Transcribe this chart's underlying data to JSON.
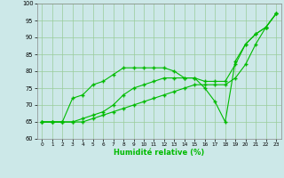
{
  "xlabel": "Humidité relative (%)",
  "xlim": [
    -0.5,
    23.5
  ],
  "ylim": [
    60,
    100
  ],
  "yticks": [
    60,
    65,
    70,
    75,
    80,
    85,
    90,
    95,
    100
  ],
  "xticks": [
    0,
    1,
    2,
    3,
    4,
    5,
    6,
    7,
    8,
    9,
    10,
    11,
    12,
    13,
    14,
    15,
    16,
    17,
    18,
    19,
    20,
    21,
    22,
    23
  ],
  "bg_color": "#cce8e8",
  "line_color": "#00bb00",
  "grid_color": "#99cc99",
  "line1_x": [
    0,
    1,
    2,
    3,
    4,
    5,
    6,
    7,
    8,
    9,
    10,
    11,
    12,
    13,
    14,
    15,
    16,
    17,
    18,
    19,
    20,
    21,
    22,
    23
  ],
  "line1_y": [
    65,
    65,
    65,
    72,
    73,
    76,
    77,
    79,
    81,
    81,
    81,
    81,
    81,
    80,
    78,
    78,
    75,
    71,
    65,
    83,
    88,
    91,
    93,
    97
  ],
  "line2_x": [
    0,
    1,
    2,
    3,
    4,
    5,
    6,
    7,
    8,
    9,
    10,
    11,
    12,
    13,
    14,
    15,
    16,
    17,
    18,
    19,
    20,
    21,
    22,
    23
  ],
  "line2_y": [
    65,
    65,
    65,
    65,
    66,
    67,
    68,
    70,
    73,
    75,
    76,
    77,
    78,
    78,
    78,
    78,
    77,
    77,
    77,
    82,
    88,
    91,
    93,
    97
  ],
  "line3_x": [
    0,
    1,
    2,
    3,
    4,
    5,
    6,
    7,
    8,
    9,
    10,
    11,
    12,
    13,
    14,
    15,
    16,
    17,
    18,
    19,
    20,
    21,
    22,
    23
  ],
  "line3_y": [
    65,
    65,
    65,
    65,
    65,
    66,
    67,
    68,
    69,
    70,
    71,
    72,
    73,
    74,
    75,
    76,
    76,
    76,
    76,
    78,
    82,
    88,
    93,
    97
  ]
}
